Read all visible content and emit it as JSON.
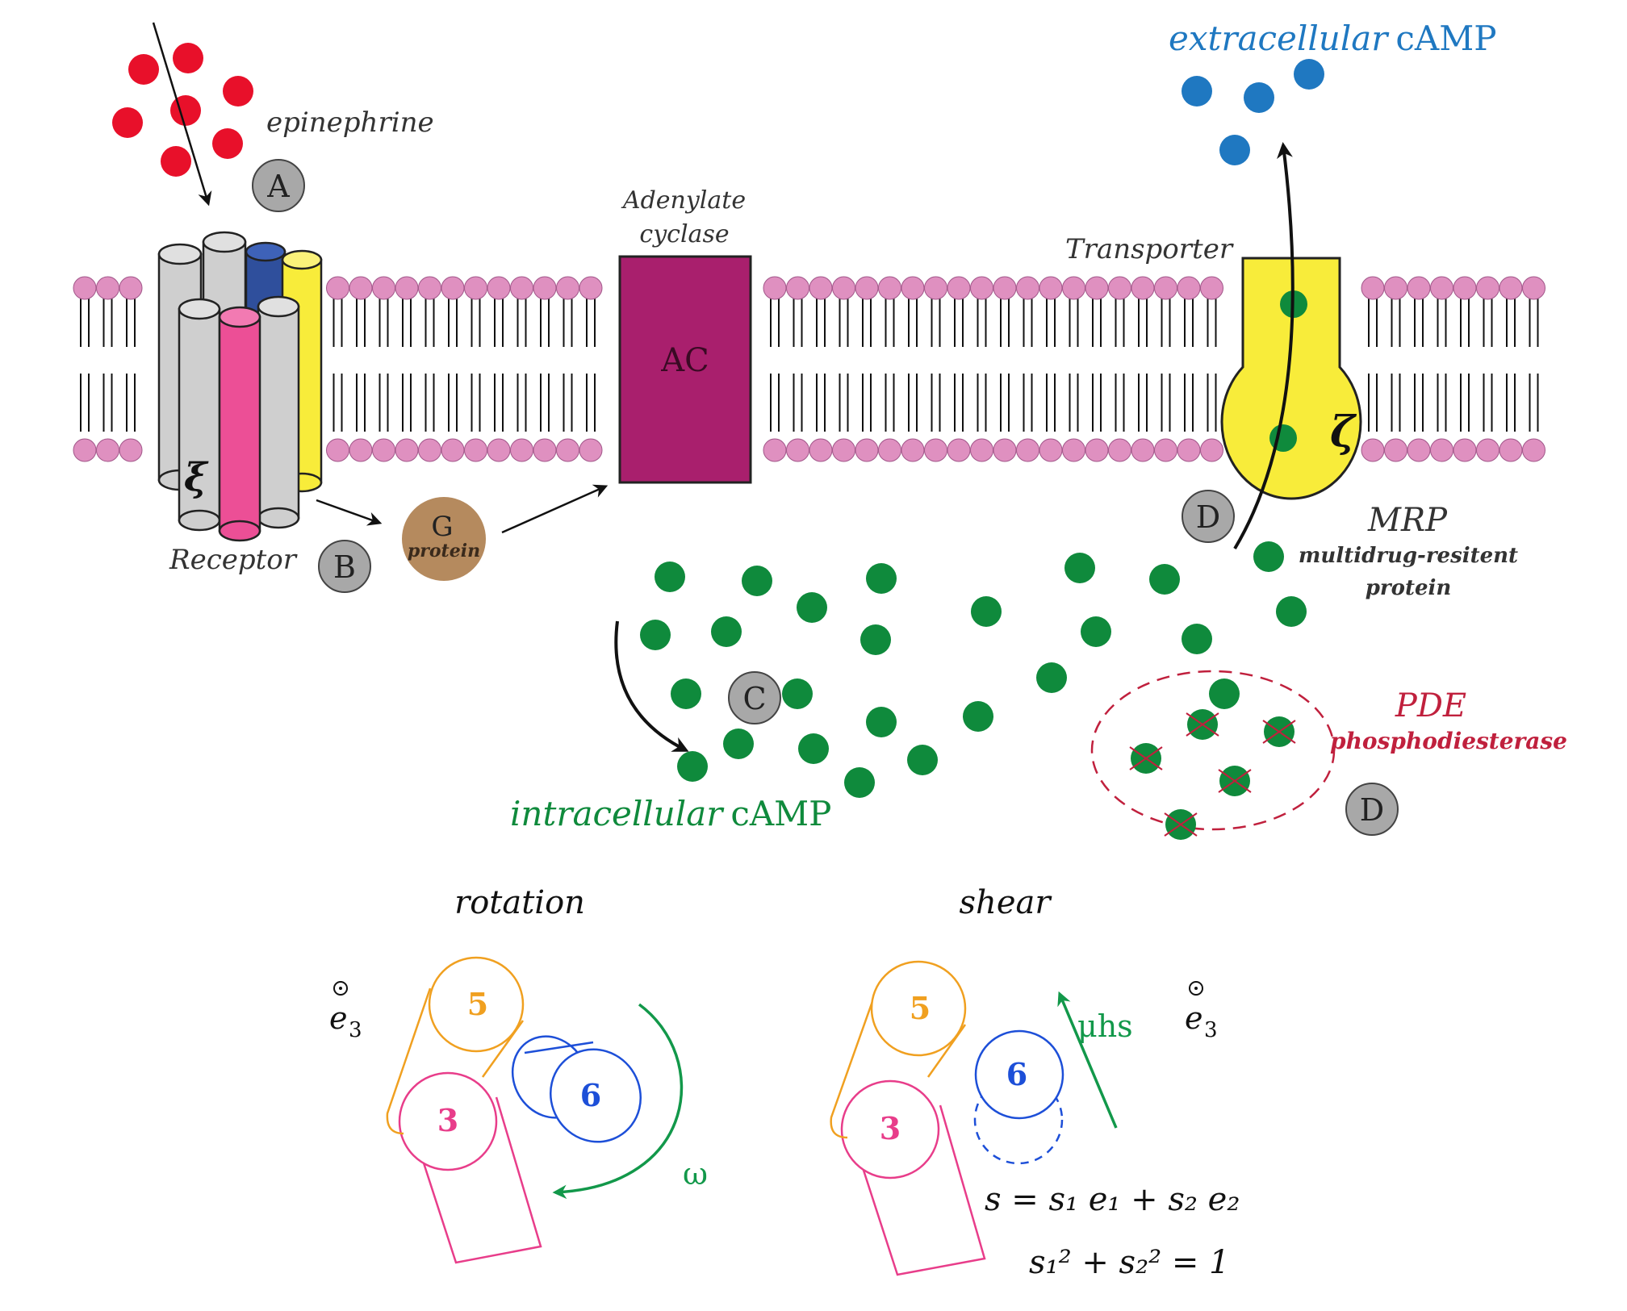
{
  "labels": {
    "epinephrine": "epinephrine",
    "extracellular_cAMP_italic": "extracellular",
    "extracellular_cAMP_plain": "cAMP",
    "adenylate_cyclase_line1": "Adenylate",
    "adenylate_cyclase_line2": "cyclase",
    "ac": "AC",
    "transporter": "Transporter",
    "receptor": "Receptor",
    "receptor_symbol": "ξ",
    "transporter_symbol": "ζ",
    "g_protein_letter": "G",
    "g_protein_word": "protein",
    "mrp": "MRP",
    "mrp_line1": "multidrug-resitent",
    "mrp_line2": "protein",
    "pde": "PDE",
    "pde_full": "phosphodiesterase",
    "intracellular_cAMP_italic": "intracellular",
    "intracellular_cAMP_plain": "cAMP",
    "badge_A": "A",
    "badge_B": "B",
    "badge_C": "C",
    "badge_D1": "D",
    "badge_D2": "D"
  },
  "bottom": {
    "rotation_title": "rotation",
    "shear_title": "shear",
    "e3_left": "e",
    "e3_left_sub": "3",
    "e3_right": "e",
    "e3_right_sub": "3",
    "helix_5_left": "5",
    "helix_3_left": "3",
    "helix_6_left": "6",
    "helix_5_right": "5",
    "helix_3_right": "3",
    "helix_6_right": "6",
    "omega": "ω",
    "mu_h_s": "μhs",
    "equation_1": "s = s₁ e₁ + s₂ e₂",
    "equation_2": "s₁² + s₂² = 1"
  },
  "colors": {
    "epinephrine": "#e8102a",
    "extracellular_cAMP": "#1f78c1",
    "intracellular_cAMP": "#0f8a3c",
    "membrane_head": "#df90c0",
    "ac_fill": "#a91f6d",
    "transporter": "#f8ec3a",
    "g_protein": "#b58a5e",
    "pde": "#c0203d",
    "badge": "#a8a8a8",
    "helix5": "#f0a020",
    "helix3": "#e83d8a",
    "helix6": "#1d4fd8",
    "arrow_green": "#12984a"
  }
}
